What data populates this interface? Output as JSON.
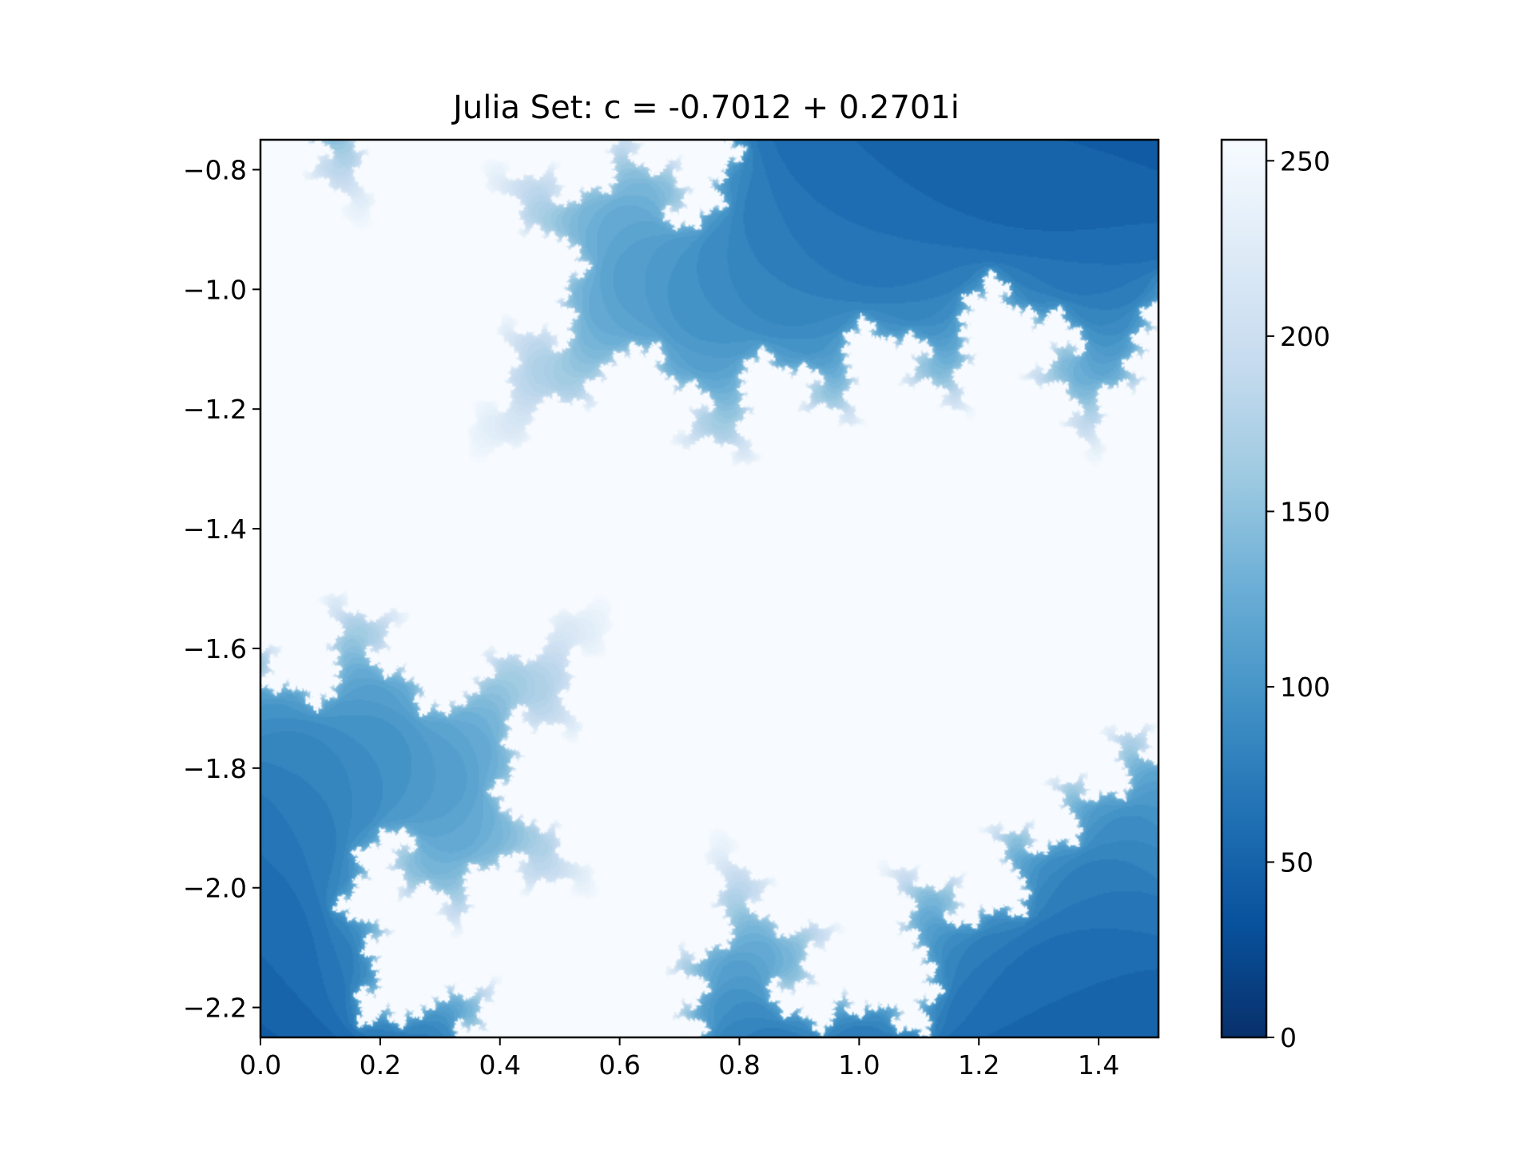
{
  "chart_data": {
    "type": "heatmap",
    "title": "Julia Set: c = -0.7012 + 0.2701i",
    "xlabel": "",
    "ylabel": "",
    "xlim": [
      0.0,
      1.5
    ],
    "ylim": [
      -2.25,
      -0.75
    ],
    "y_inverted": true,
    "x_ticks": [
      {
        "value": 0.0,
        "label": "0.0"
      },
      {
        "value": 0.2,
        "label": "0.2"
      },
      {
        "value": 0.4,
        "label": "0.4"
      },
      {
        "value": 0.6,
        "label": "0.6"
      },
      {
        "value": 0.8,
        "label": "0.8"
      },
      {
        "value": 1.0,
        "label": "1.0"
      },
      {
        "value": 1.2,
        "label": "1.2"
      },
      {
        "value": 1.4,
        "label": "1.4"
      }
    ],
    "y_ticks": [
      {
        "value": -0.8,
        "label": "−0.8"
      },
      {
        "value": -1.0,
        "label": "−1.0"
      },
      {
        "value": -1.2,
        "label": "−1.2"
      },
      {
        "value": -1.4,
        "label": "−1.4"
      },
      {
        "value": -1.6,
        "label": "−1.6"
      },
      {
        "value": -1.8,
        "label": "−1.8"
      },
      {
        "value": -2.0,
        "label": "−2.0"
      },
      {
        "value": -2.2,
        "label": "−2.2"
      }
    ],
    "colorbar": {
      "colormap": "Blues_r",
      "range": [
        0,
        256
      ],
      "ticks": [
        {
          "value": 0,
          "label": "0"
        },
        {
          "value": 50,
          "label": "50"
        },
        {
          "value": 100,
          "label": "100"
        },
        {
          "value": 150,
          "label": "150"
        },
        {
          "value": 200,
          "label": "200"
        },
        {
          "value": 250,
          "label": "250"
        }
      ]
    },
    "julia": {
      "c_re": -0.7012,
      "c_im": 0.2701,
      "max_iter": 256
    },
    "colors": {
      "low": "#08306b",
      "mid": "#4292c6",
      "high": "#f7fbff",
      "axis": "#000000"
    }
  }
}
